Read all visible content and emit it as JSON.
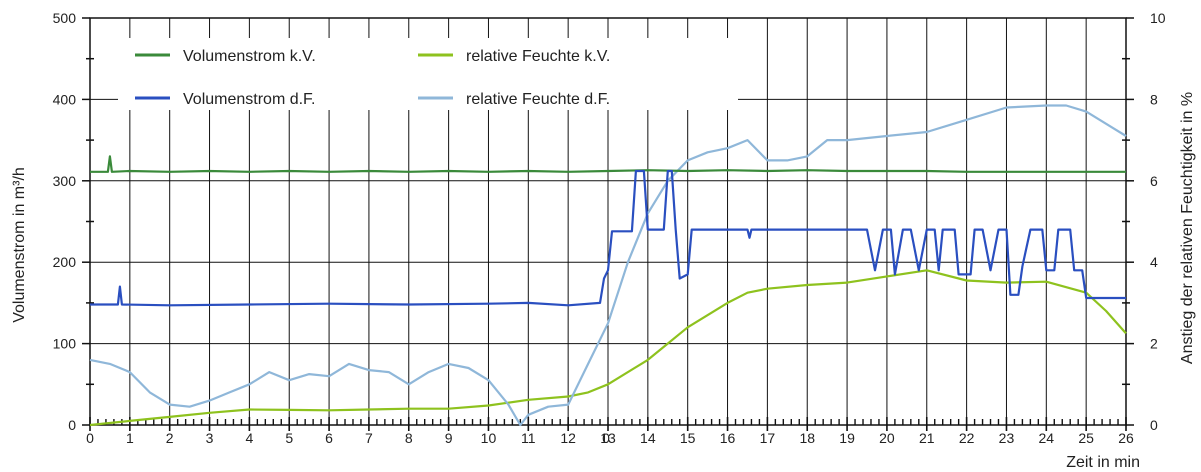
{
  "chart_data": {
    "type": "line",
    "xlabel": "Zeit in min",
    "ylabel": "Volumenstrom in m³/h",
    "y2label": "Anstieg der relativen Feuchtigkeit in %",
    "xlim": [
      0,
      26
    ],
    "ylim": [
      0,
      500
    ],
    "y2lim": [
      0,
      10
    ],
    "x_ticks": [
      "0",
      "1",
      "2",
      "3",
      "4",
      "5",
      "6",
      "7",
      "8",
      "9",
      "10",
      "11",
      "12",
      "13",
      "14",
      "15",
      "16",
      "17",
      "18",
      "19",
      "20",
      "21",
      "22",
      "23",
      "24",
      "25",
      "26"
    ],
    "y_ticks": [
      "0",
      "100",
      "200",
      "300",
      "400",
      "500"
    ],
    "y2_ticks": [
      "0",
      "2",
      "4",
      "6",
      "8",
      "10"
    ],
    "extra_x_label": "0",
    "grid": true,
    "legend_position": "top-left",
    "series": [
      {
        "name": "Volumenstrom k.V.",
        "axis": "left",
        "color": "#3a8a3a",
        "points": [
          [
            0,
            311
          ],
          [
            0.45,
            311
          ],
          [
            0.5,
            330
          ],
          [
            0.55,
            311
          ],
          [
            1,
            312
          ],
          [
            2,
            311
          ],
          [
            3,
            312
          ],
          [
            4,
            311
          ],
          [
            5,
            312
          ],
          [
            6,
            311
          ],
          [
            7,
            312
          ],
          [
            8,
            311
          ],
          [
            9,
            312
          ],
          [
            10,
            311
          ],
          [
            11,
            312
          ],
          [
            12,
            311
          ],
          [
            13,
            312
          ],
          [
            14,
            313
          ],
          [
            15,
            312
          ],
          [
            16,
            313
          ],
          [
            17,
            312
          ],
          [
            18,
            313
          ],
          [
            19,
            312
          ],
          [
            20,
            312
          ],
          [
            21,
            312
          ],
          [
            22,
            311
          ],
          [
            23,
            311
          ],
          [
            24,
            311
          ],
          [
            25,
            311
          ],
          [
            26,
            311
          ]
        ]
      },
      {
        "name": "Volumenstrom d.F.",
        "axis": "left",
        "color": "#2a4fc0",
        "points": [
          [
            0,
            148
          ],
          [
            0.7,
            148
          ],
          [
            0.75,
            170
          ],
          [
            0.8,
            148
          ],
          [
            2,
            147
          ],
          [
            4,
            148
          ],
          [
            6,
            149
          ],
          [
            8,
            148
          ],
          [
            10,
            149
          ],
          [
            11,
            150
          ],
          [
            12,
            147
          ],
          [
            12.8,
            150
          ],
          [
            12.9,
            180
          ],
          [
            13.0,
            190
          ],
          [
            13.1,
            238
          ],
          [
            13.6,
            238
          ],
          [
            13.7,
            312
          ],
          [
            13.9,
            312
          ],
          [
            14.0,
            240
          ],
          [
            14.4,
            240
          ],
          [
            14.5,
            312
          ],
          [
            14.6,
            312
          ],
          [
            14.7,
            240
          ],
          [
            14.8,
            180
          ],
          [
            15.0,
            185
          ],
          [
            15.1,
            240
          ],
          [
            16.5,
            240
          ],
          [
            16.55,
            230
          ],
          [
            16.6,
            240
          ],
          [
            18,
            240
          ],
          [
            19.1,
            240
          ],
          [
            19.2,
            240
          ],
          [
            19.4,
            240
          ],
          [
            19.5,
            240
          ],
          [
            19.7,
            190
          ],
          [
            19.9,
            240
          ],
          [
            20.1,
            240
          ],
          [
            20.2,
            185
          ],
          [
            20.4,
            240
          ],
          [
            20.6,
            240
          ],
          [
            20.8,
            190
          ],
          [
            21.0,
            240
          ],
          [
            21.2,
            240
          ],
          [
            21.3,
            190
          ],
          [
            21.4,
            240
          ],
          [
            21.7,
            240
          ],
          [
            21.8,
            185
          ],
          [
            22.1,
            185
          ],
          [
            22.2,
            240
          ],
          [
            22.4,
            240
          ],
          [
            22.6,
            190
          ],
          [
            22.8,
            240
          ],
          [
            23.0,
            240
          ],
          [
            23.1,
            160
          ],
          [
            23.3,
            160
          ],
          [
            23.4,
            195
          ],
          [
            23.6,
            240
          ],
          [
            23.9,
            240
          ],
          [
            24.0,
            190
          ],
          [
            24.2,
            190
          ],
          [
            24.3,
            240
          ],
          [
            24.6,
            240
          ],
          [
            24.7,
            190
          ],
          [
            24.9,
            190
          ],
          [
            25.0,
            156
          ],
          [
            26,
            156
          ]
        ]
      },
      {
        "name": "relative Feuchte k.V.",
        "axis": "right",
        "color": "#8ec21e",
        "points": [
          [
            0,
            0
          ],
          [
            1,
            0.1
          ],
          [
            2,
            0.2
          ],
          [
            3,
            0.3
          ],
          [
            4,
            0.38
          ],
          [
            5,
            0.37
          ],
          [
            6,
            0.36
          ],
          [
            7,
            0.38
          ],
          [
            8,
            0.4
          ],
          [
            9,
            0.4
          ],
          [
            10,
            0.48
          ],
          [
            11,
            0.62
          ],
          [
            12,
            0.7
          ],
          [
            12.5,
            0.8
          ],
          [
            13,
            1.0
          ],
          [
            14,
            1.6
          ],
          [
            15,
            2.4
          ],
          [
            16,
            3.0
          ],
          [
            16.5,
            3.25
          ],
          [
            17,
            3.35
          ],
          [
            18,
            3.44
          ],
          [
            19,
            3.5
          ],
          [
            20,
            3.65
          ],
          [
            21,
            3.8
          ],
          [
            22,
            3.55
          ],
          [
            23,
            3.5
          ],
          [
            24,
            3.52
          ],
          [
            25,
            3.25
          ],
          [
            25.5,
            2.8
          ],
          [
            26,
            2.25
          ]
        ]
      },
      {
        "name": "relative Feuchte d.F.",
        "axis": "right",
        "color": "#8fb7d9",
        "points": [
          [
            0,
            1.6
          ],
          [
            0.5,
            1.5
          ],
          [
            1,
            1.3
          ],
          [
            1.5,
            0.8
          ],
          [
            2,
            0.5
          ],
          [
            2.5,
            0.45
          ],
          [
            3,
            0.6
          ],
          [
            3.5,
            0.8
          ],
          [
            4,
            1.0
          ],
          [
            4.5,
            1.3
          ],
          [
            5,
            1.1
          ],
          [
            5.5,
            1.25
          ],
          [
            6,
            1.2
          ],
          [
            6.5,
            1.5
          ],
          [
            7,
            1.35
          ],
          [
            7.5,
            1.3
          ],
          [
            8,
            1.0
          ],
          [
            8.5,
            1.3
          ],
          [
            9,
            1.5
          ],
          [
            9.5,
            1.4
          ],
          [
            10,
            1.1
          ],
          [
            10.5,
            0.5
          ],
          [
            10.8,
            0.0
          ],
          [
            11,
            0.25
          ],
          [
            11.5,
            0.45
          ],
          [
            12,
            0.5
          ],
          [
            12.5,
            1.5
          ],
          [
            13,
            2.5
          ],
          [
            13.5,
            4.0
          ],
          [
            14,
            5.2
          ],
          [
            14.5,
            6.0
          ],
          [
            15,
            6.5
          ],
          [
            15.5,
            6.7
          ],
          [
            16,
            6.8
          ],
          [
            16.5,
            7.0
          ],
          [
            17,
            6.5
          ],
          [
            17.5,
            6.5
          ],
          [
            18,
            6.6
          ],
          [
            18.5,
            7.0
          ],
          [
            19,
            7.0
          ],
          [
            20,
            7.1
          ],
          [
            21,
            7.2
          ],
          [
            22,
            7.5
          ],
          [
            23,
            7.8
          ],
          [
            24,
            7.85
          ],
          [
            24.5,
            7.85
          ],
          [
            25,
            7.7
          ],
          [
            26,
            7.1
          ]
        ]
      }
    ]
  }
}
